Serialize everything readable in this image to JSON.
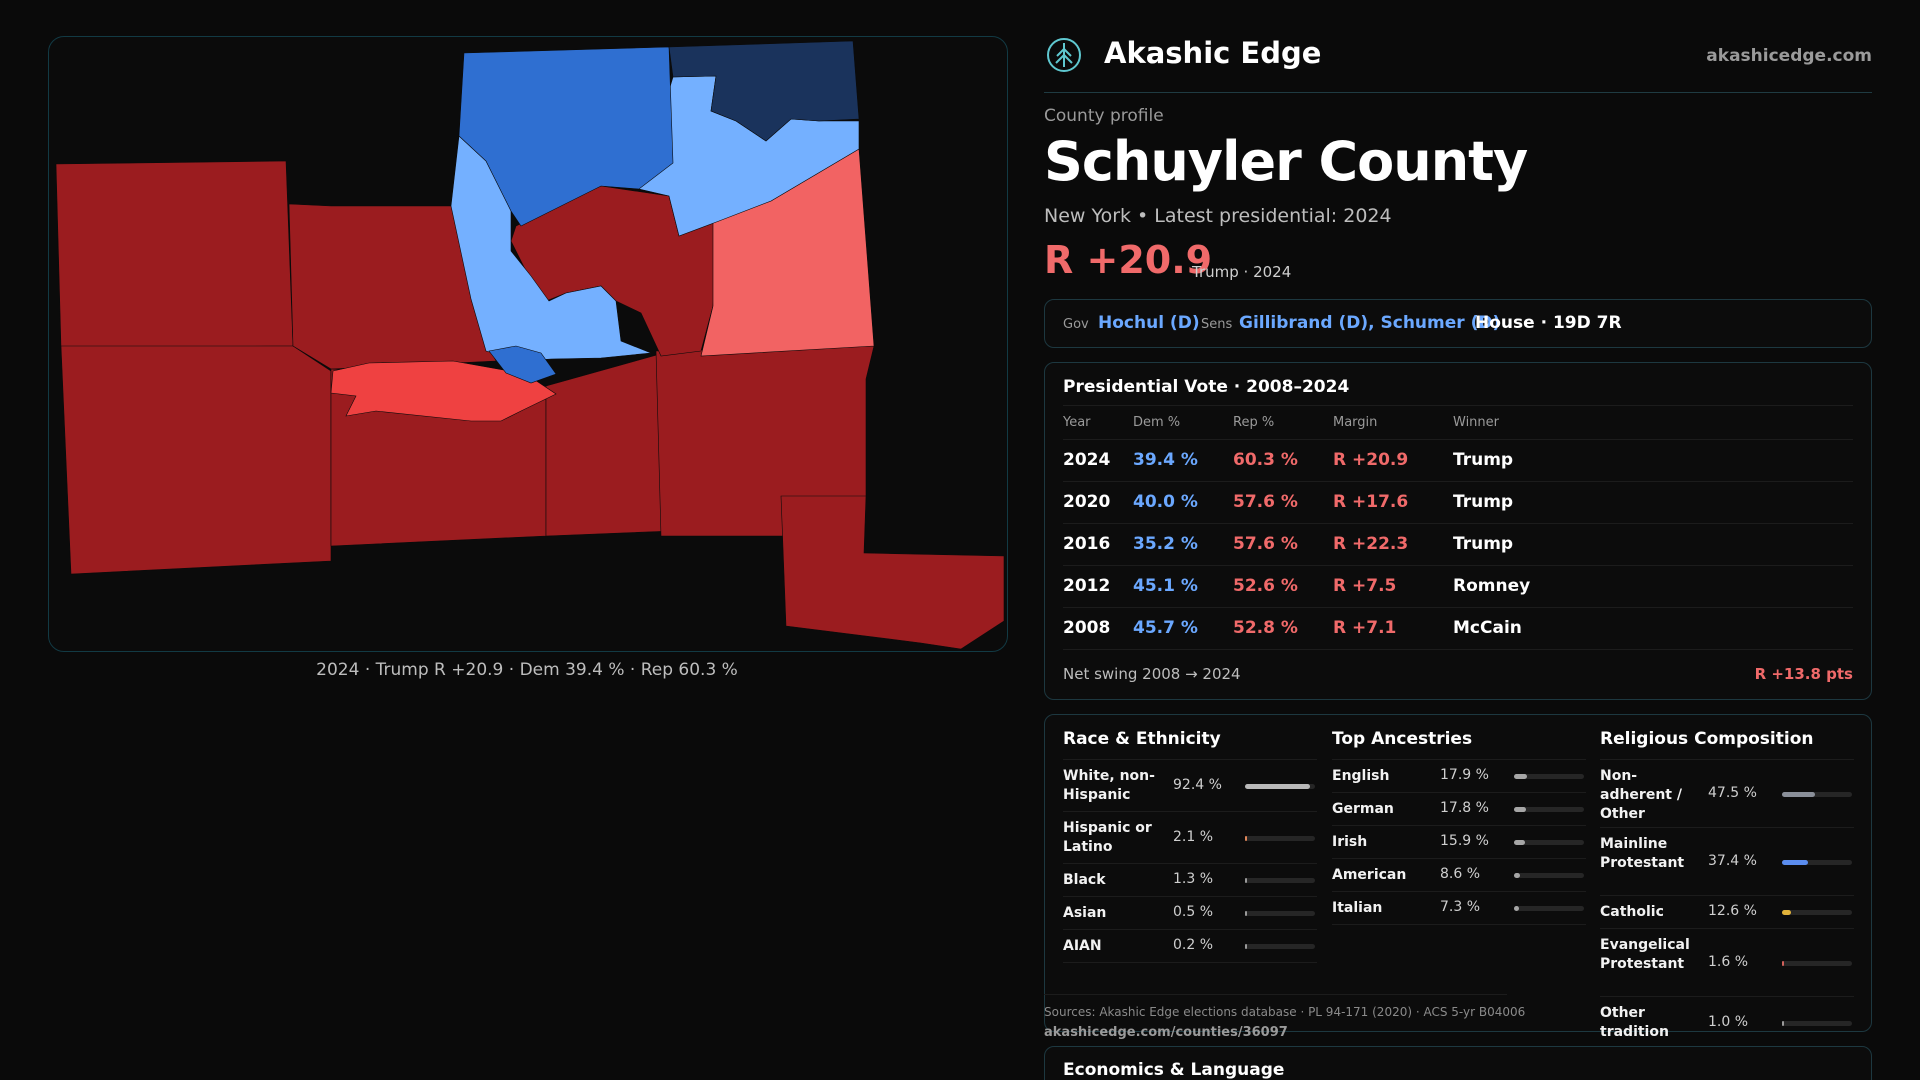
{
  "map": {
    "caption": "2024 · Trump R +20.9 · Dem 39.4 % · Rep 60.3 %",
    "colors": {
      "strong_rep": "#9b1c1f",
      "lean_rep": "#f26363",
      "mid_rep": "#ef4141",
      "light_dem": "#74b0ff",
      "mid_dem": "#2f6fd1",
      "strong_dem": "#1a335c"
    }
  },
  "brand": {
    "name": "Akashic Edge",
    "url": "akashicedge.com",
    "logo_icon": "tree-emblem-icon"
  },
  "profile": {
    "eyebrow": "County profile",
    "title": "Schuyler County",
    "subtitle": "New York • Latest presidential: 2024",
    "margin": "R +20.9",
    "margin_note": "Trump · 2024"
  },
  "officials": {
    "gov_label": "Gov",
    "gov": "Hochul (D)",
    "sens_label": "Sens",
    "sens": "Gillibrand (D), Schumer (D)",
    "house": "House · 19D 7R"
  },
  "presidential": {
    "title": "Presidential Vote · 2008–2024",
    "headers": [
      "Year",
      "Dem %",
      "Rep %",
      "Margin",
      "Winner"
    ],
    "rows": [
      {
        "year": "2024",
        "dem": "39.4 %",
        "rep": "60.3 %",
        "margin": "R +20.9",
        "winner": "Trump"
      },
      {
        "year": "2020",
        "dem": "40.0 %",
        "rep": "57.6 %",
        "margin": "R +17.6",
        "winner": "Trump"
      },
      {
        "year": "2016",
        "dem": "35.2 %",
        "rep": "57.6 %",
        "margin": "R +22.3",
        "winner": "Trump"
      },
      {
        "year": "2012",
        "dem": "45.1 %",
        "rep": "52.6 %",
        "margin": "R +7.5",
        "winner": "Romney"
      },
      {
        "year": "2008",
        "dem": "45.7 %",
        "rep": "52.8 %",
        "margin": "R +7.1",
        "winner": "McCain"
      }
    ],
    "net_swing_label": "Net swing 2008 → 2024",
    "net_swing_value": "R +13.8 pts"
  },
  "race": {
    "title": "Race & Ethnicity",
    "items": [
      {
        "label": "White, non-Hispanic",
        "value": "92.4 %",
        "pct": 92.4,
        "color": "#b9b9b9"
      },
      {
        "label": "Hispanic or Latino",
        "value": "2.1 %",
        "pct": 2.1,
        "color": "#e0875a"
      },
      {
        "label": "Black",
        "value": "1.3 %",
        "pct": 1.3,
        "color": "#9a9a9a"
      },
      {
        "label": "Asian",
        "value": "0.5 %",
        "pct": 0.5,
        "color": "#9a9a9a"
      },
      {
        "label": "AIAN",
        "value": "0.2 %",
        "pct": 0.2,
        "color": "#9a9a9a"
      }
    ]
  },
  "ancestry": {
    "title": "Top Ancestries",
    "items": [
      {
        "label": "English",
        "value": "17.9 %",
        "pct": 17.9,
        "color": "#a6a6a6"
      },
      {
        "label": "German",
        "value": "17.8 %",
        "pct": 17.8,
        "color": "#a6a6a6"
      },
      {
        "label": "Irish",
        "value": "15.9 %",
        "pct": 15.9,
        "color": "#a6a6a6"
      },
      {
        "label": "American",
        "value": "8.6 %",
        "pct": 8.6,
        "color": "#a6a6a6"
      },
      {
        "label": "Italian",
        "value": "7.3 %",
        "pct": 7.3,
        "color": "#a6a6a6"
      }
    ]
  },
  "religion": {
    "title": "Religious Composition",
    "items": [
      {
        "label": "Non-adherent / Other",
        "value": "47.5 %",
        "pct": 47.5,
        "color": "#8a8f99"
      },
      {
        "label": "Mainline Protestant",
        "value": "37.4 %",
        "pct": 37.4,
        "color": "#5b8def"
      },
      {
        "label": "Catholic",
        "value": "12.6 %",
        "pct": 12.6,
        "color": "#e2b33a"
      },
      {
        "label": "Evangelical Protestant",
        "value": "1.6 %",
        "pct": 1.6,
        "color": "#d0605a"
      },
      {
        "label": "Other tradition",
        "value": "1.0 %",
        "pct": 1.0,
        "color": "#9a9a9a"
      }
    ]
  },
  "sources": {
    "text": "Sources: Akashic Edge elections database · PL 94-171 (2020) · ACS 5-yr B04006",
    "url": "akashicedge.com/counties/36097"
  },
  "economics": {
    "title": "Economics & Language"
  }
}
